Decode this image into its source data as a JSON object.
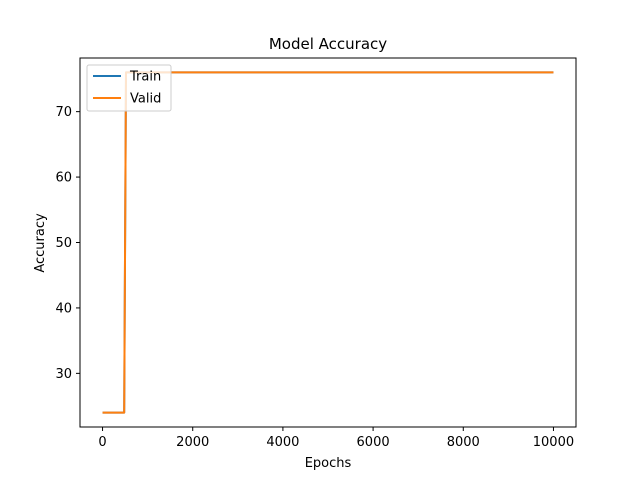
{
  "chart_data": {
    "type": "line",
    "title": "Model Accuracy",
    "xlabel": "Epochs",
    "ylabel": "Accuracy",
    "xlim": [
      -500,
      10500
    ],
    "ylim": [
      21.8,
      78.2
    ],
    "xticks": [
      0,
      2000,
      4000,
      6000,
      8000,
      10000
    ],
    "xtick_labels": [
      "0",
      "2000",
      "4000",
      "6000",
      "8000",
      "10000"
    ],
    "yticks": [
      30,
      40,
      50,
      60,
      70
    ],
    "ytick_labels": [
      "30",
      "40",
      "50",
      "60",
      "70"
    ],
    "grid": false,
    "legend_position": "top-left",
    "series": [
      {
        "name": "Train",
        "color": "#1f77b4",
        "points": [
          [
            0,
            24.0
          ],
          [
            480,
            24.0
          ],
          [
            520,
            76.0
          ],
          [
            10000,
            76.0
          ]
        ]
      },
      {
        "name": "Valid",
        "color": "#ff7f0e",
        "points": [
          [
            0,
            24.0
          ],
          [
            480,
            24.0
          ],
          [
            520,
            76.0
          ],
          [
            10000,
            76.0
          ]
        ]
      }
    ]
  }
}
